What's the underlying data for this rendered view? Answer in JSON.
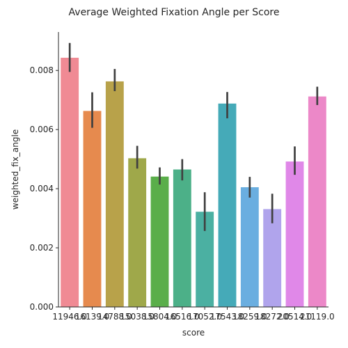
{
  "chart_data": {
    "type": "bar",
    "title": "Average Weighted Fixation Angle per Score",
    "xlabel": "score",
    "ylabel": "weighted_fix_angle",
    "ylim": [
      0,
      0.0093
    ],
    "yticks": [
      0.0,
      0.002,
      0.004,
      0.006,
      0.008
    ],
    "ytick_labels": [
      "0.000",
      "0.002",
      "0.004",
      "0.006",
      "0.008"
    ],
    "categories": [
      "11946.0",
      "16139.0",
      "14788.0",
      "15038.0",
      "15804.0",
      "16516.0",
      "17052.0",
      "17543.0",
      "18259.0",
      "18272.0",
      "20514.0",
      "21119.0"
    ],
    "tick_labels_rendered": [
      "11946.0",
      "16139.0",
      "14788.0",
      "15038.0",
      "15804.0",
      "16516.0",
      "17052.0",
      "17543.0",
      "18259.0",
      "18272.0",
      "20514.0",
      "21119.0"
    ],
    "values": [
      0.00843,
      0.00663,
      0.00763,
      0.00503,
      0.00441,
      0.00465,
      0.00322,
      0.00688,
      0.00405,
      0.00331,
      0.00492,
      0.00712
    ],
    "ci_low": [
      0.00795,
      0.00606,
      0.0073,
      0.00468,
      0.00414,
      0.00428,
      0.00257,
      0.00638,
      0.0037,
      0.00283,
      0.00447,
      0.00683
    ],
    "ci_high": [
      0.00893,
      0.00726,
      0.00805,
      0.00545,
      0.00472,
      0.005,
      0.00388,
      0.00727,
      0.0044,
      0.00383,
      0.00543,
      0.00745
    ],
    "colors": [
      "#f08a94",
      "#e68a4e",
      "#b8a24a",
      "#9fa84a",
      "#5aae4a",
      "#4cb088",
      "#4bb0a2",
      "#45aab8",
      "#6aaee0",
      "#b0a4ec",
      "#e088e8",
      "#ec88c8"
    ],
    "error_bar_color": "#404040",
    "grid": false,
    "legend": null
  }
}
